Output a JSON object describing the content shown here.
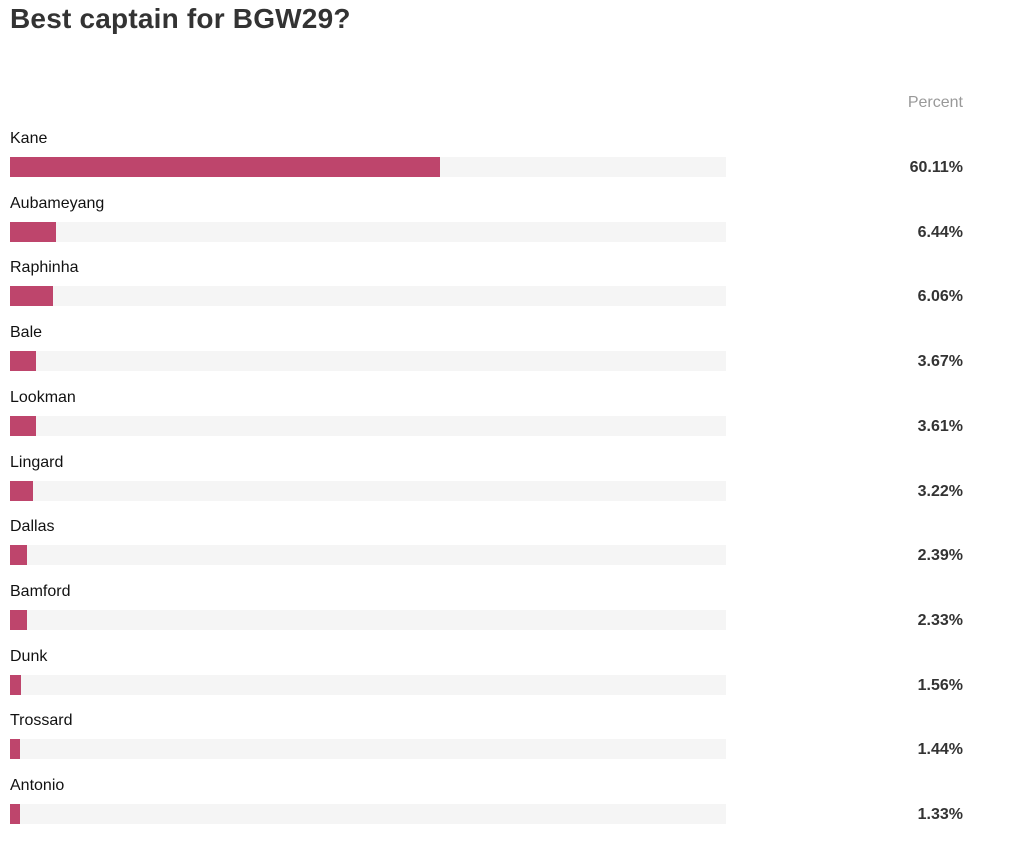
{
  "header": {
    "title": "Best captain for BGW29?",
    "column_label": "Percent"
  },
  "colors": {
    "bar": "#be456c",
    "track": "#f5f5f5"
  },
  "chart_data": {
    "type": "bar",
    "orientation": "horizontal",
    "title": "Best captain for BGW29?",
    "xlabel": "",
    "ylabel": "",
    "value_column_label": "Percent",
    "xlim": [
      0,
      100
    ],
    "unit": "%",
    "categories": [
      "Kane",
      "Aubameyang",
      "Raphinha",
      "Bale",
      "Lookman",
      "Lingard",
      "Dallas",
      "Bamford",
      "Dunk",
      "Trossard",
      "Antonio"
    ],
    "values": [
      60.11,
      6.44,
      6.06,
      3.67,
      3.61,
      3.22,
      2.39,
      2.33,
      1.56,
      1.44,
      1.33
    ],
    "value_labels": [
      "60.11%",
      "6.44%",
      "6.06%",
      "3.67%",
      "3.61%",
      "3.22%",
      "2.39%",
      "2.33%",
      "1.56%",
      "1.44%",
      "1.33%"
    ]
  }
}
